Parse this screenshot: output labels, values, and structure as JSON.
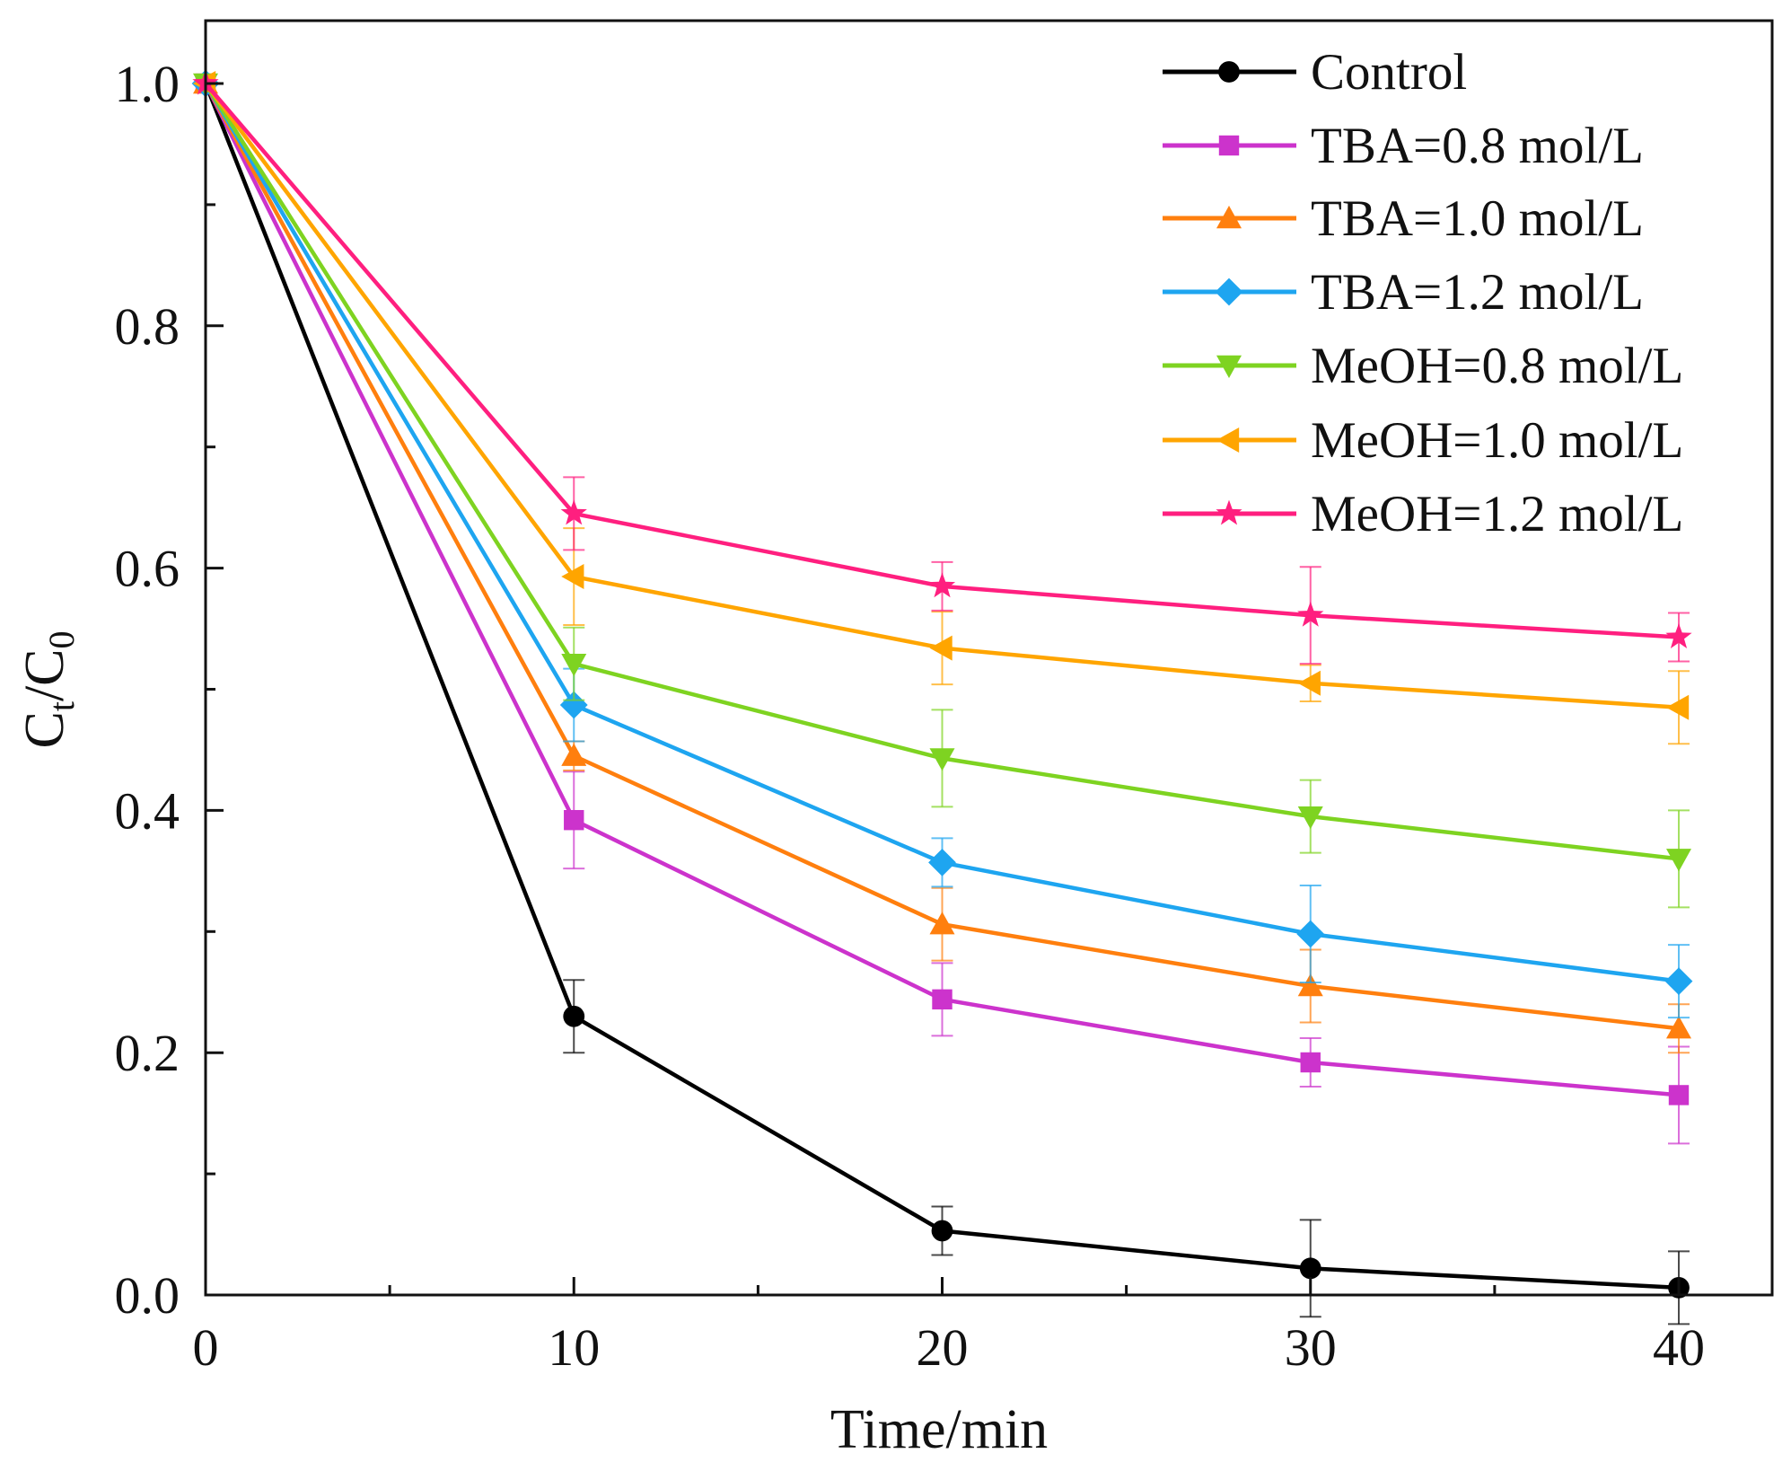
{
  "chart_data": {
    "type": "line",
    "title": "",
    "xlabel": "Time/min",
    "ylabel_main": "C",
    "ylabel_sub1": "t",
    "ylabel_sep": "/C",
    "ylabel_sub2": "0",
    "xlim": [
      0,
      42.5
    ],
    "ylim": [
      0,
      1.05
    ],
    "xticks": [
      0,
      10,
      20,
      30,
      40
    ],
    "xtick_labels": [
      "0",
      "10",
      "20",
      "30",
      "40"
    ],
    "xminor": [
      5,
      15,
      25,
      35
    ],
    "yticks": [
      0,
      0.2,
      0.4,
      0.6,
      0.8,
      1.0
    ],
    "ytick_labels": [
      "0.0",
      "0.2",
      "0.4",
      "0.6",
      "0.8",
      "1.0"
    ],
    "yminor": [
      0.1,
      0.3,
      0.5,
      0.7,
      0.9
    ],
    "grid": false,
    "legend_position": "top-right",
    "x": [
      0,
      10,
      20,
      30,
      40
    ],
    "series": [
      {
        "name": "Control",
        "color": "#000000",
        "marker": "circle",
        "values": [
          1.0,
          0.23,
          0.053,
          0.022,
          0.006
        ],
        "errors": [
          0,
          0.03,
          0.02,
          0.04,
          0.03
        ]
      },
      {
        "name": "TBA=0.8 mol/L",
        "color": "#CC33CC",
        "marker": "square",
        "values": [
          1.0,
          0.392,
          0.244,
          0.192,
          0.165
        ],
        "errors": [
          0,
          0.04,
          0.03,
          0.02,
          0.04
        ]
      },
      {
        "name": "TBA=1.0 mol/L",
        "color": "#FF7F0E",
        "marker": "triangle-up",
        "values": [
          1.0,
          0.445,
          0.306,
          0.255,
          0.22
        ],
        "errors": [
          0,
          0.012,
          0.03,
          0.03,
          0.02
        ]
      },
      {
        "name": "TBA=1.2 mol/L",
        "color": "#1EA5F0",
        "marker": "diamond",
        "values": [
          1.0,
          0.487,
          0.357,
          0.298,
          0.259
        ],
        "errors": [
          0,
          0.03,
          0.02,
          0.04,
          0.03
        ]
      },
      {
        "name": "MeOH=0.8 mol/L",
        "color": "#7ED321",
        "marker": "triangle-down",
        "values": [
          1.0,
          0.521,
          0.443,
          0.395,
          0.36
        ],
        "errors": [
          0,
          0.03,
          0.04,
          0.03,
          0.04
        ]
      },
      {
        "name": "MeOH=1.0 mol/L",
        "color": "#FFA500",
        "marker": "triangle-left",
        "values": [
          1.0,
          0.593,
          0.534,
          0.505,
          0.485
        ],
        "errors": [
          0,
          0.04,
          0.03,
          0.015,
          0.03
        ]
      },
      {
        "name": "MeOH=1.2 mol/L",
        "color": "#FF1F7F",
        "marker": "star",
        "values": [
          1.0,
          0.645,
          0.585,
          0.561,
          0.543
        ],
        "errors": [
          0,
          0.03,
          0.02,
          0.04,
          0.02
        ]
      }
    ]
  }
}
